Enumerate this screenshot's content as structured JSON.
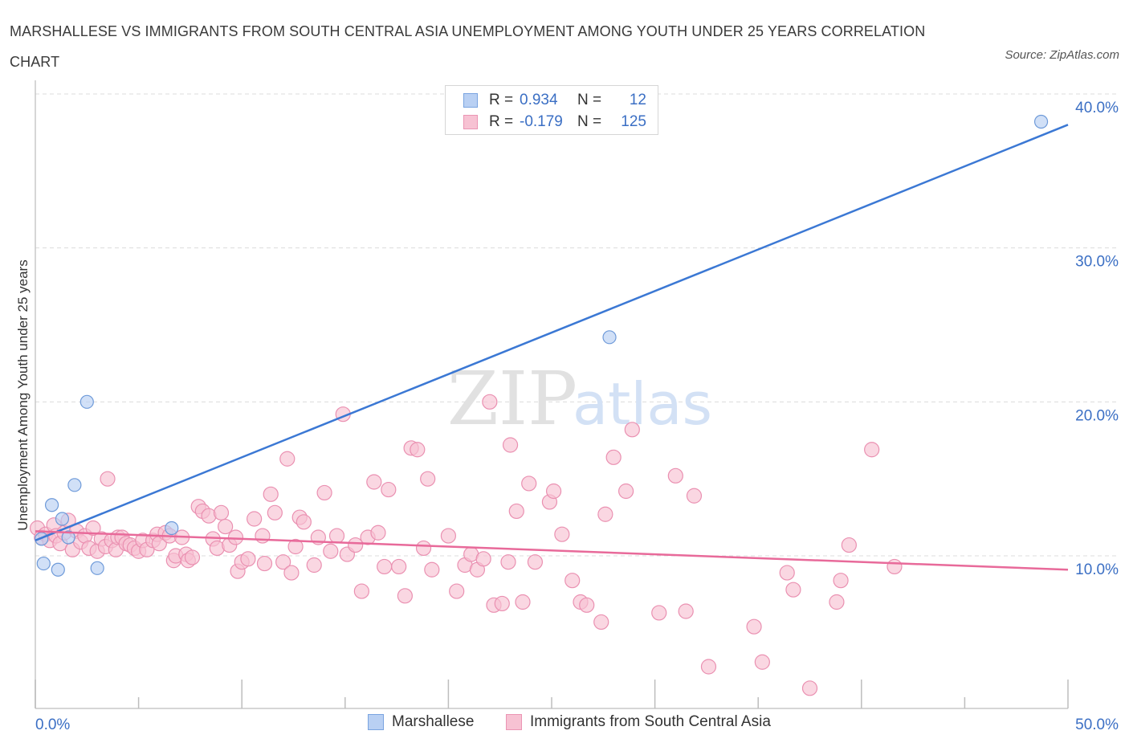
{
  "title": "MARSHALLESE VS IMMIGRANTS FROM SOUTH CENTRAL ASIA UNEMPLOYMENT AMONG YOUTH UNDER 25 YEARS CORRELATION CHART",
  "source": "Source: ZipAtlas.com",
  "watermark": {
    "zip": "ZIP",
    "atlas": "atlas"
  },
  "colors": {
    "blue": "#3b78d4",
    "blue_fill": "#b9d0f3",
    "pink": "#e86a9a",
    "pink_fill": "#f7c2d3",
    "axis_label": "#3b6fc4",
    "grid": "#dcdcdc"
  },
  "legend_top": {
    "rows": [
      {
        "r_label": "R =",
        "r_value": "0.934",
        "n_label": "N =",
        "n_value": "12"
      },
      {
        "r_label": "R =",
        "r_value": "-0.179",
        "n_label": "N =",
        "n_value": "125"
      }
    ]
  },
  "legend_bottom": {
    "items": [
      "Marshallese",
      "Immigrants from South Central Asia"
    ]
  },
  "chart_data": {
    "type": "scatter",
    "xlabel": "",
    "ylabel": "Unemployment Among Youth under 25 years",
    "xlim": [
      0,
      50
    ],
    "ylim": [
      0,
      40
    ],
    "x_tick_labels": [
      "0.0%",
      "50.0%"
    ],
    "y_ticks": [
      10,
      20,
      30,
      40
    ],
    "y_tick_labels": [
      "10.0%",
      "20.0%",
      "30.0%",
      "40.0%"
    ],
    "grid": true,
    "series": [
      {
        "name": "Marshallese",
        "R": 0.934,
        "N": 12,
        "trend": [
          [
            0,
            11.0
          ],
          [
            50,
            38.0
          ]
        ],
        "points": [
          [
            0.3,
            11.1
          ],
          [
            0.4,
            9.5
          ],
          [
            0.8,
            13.3
          ],
          [
            1.1,
            9.1
          ],
          [
            1.3,
            12.4
          ],
          [
            1.6,
            11.2
          ],
          [
            1.9,
            14.6
          ],
          [
            2.5,
            20.0
          ],
          [
            3.0,
            9.2
          ],
          [
            6.6,
            11.8
          ],
          [
            27.8,
            24.2
          ],
          [
            48.7,
            38.2
          ]
        ]
      },
      {
        "name": "Immigrants from South Central Asia",
        "R": -0.179,
        "N": 125,
        "trend": [
          [
            0,
            11.6
          ],
          [
            50,
            9.1
          ]
        ],
        "points": [
          [
            0.1,
            11.8
          ],
          [
            0.3,
            11.2
          ],
          [
            0.5,
            11.4
          ],
          [
            0.7,
            11.0
          ],
          [
            0.9,
            12.0
          ],
          [
            1.0,
            11.3
          ],
          [
            1.2,
            10.8
          ],
          [
            1.4,
            11.5
          ],
          [
            1.6,
            12.3
          ],
          [
            1.8,
            10.4
          ],
          [
            2.0,
            11.6
          ],
          [
            2.2,
            10.9
          ],
          [
            2.4,
            11.3
          ],
          [
            2.6,
            10.5
          ],
          [
            2.8,
            11.8
          ],
          [
            3.0,
            10.3
          ],
          [
            3.2,
            11.1
          ],
          [
            3.4,
            10.6
          ],
          [
            3.5,
            15.0
          ],
          [
            3.7,
            11.0
          ],
          [
            3.9,
            10.4
          ],
          [
            4.0,
            11.2
          ],
          [
            4.2,
            11.2
          ],
          [
            4.4,
            10.8
          ],
          [
            4.6,
            10.7
          ],
          [
            4.8,
            10.5
          ],
          [
            5.0,
            10.3
          ],
          [
            5.2,
            11.0
          ],
          [
            5.4,
            10.4
          ],
          [
            5.7,
            11.0
          ],
          [
            5.9,
            11.4
          ],
          [
            6.0,
            10.8
          ],
          [
            6.3,
            11.5
          ],
          [
            6.5,
            11.3
          ],
          [
            6.7,
            9.7
          ],
          [
            6.8,
            10.0
          ],
          [
            7.1,
            11.2
          ],
          [
            7.3,
            10.1
          ],
          [
            7.4,
            9.7
          ],
          [
            7.6,
            9.9
          ],
          [
            7.9,
            13.2
          ],
          [
            8.1,
            12.9
          ],
          [
            8.4,
            12.6
          ],
          [
            8.6,
            11.1
          ],
          [
            8.8,
            10.5
          ],
          [
            9.0,
            12.8
          ],
          [
            9.2,
            11.9
          ],
          [
            9.4,
            10.7
          ],
          [
            9.7,
            11.2
          ],
          [
            9.8,
            9.0
          ],
          [
            10.0,
            9.6
          ],
          [
            10.3,
            9.8
          ],
          [
            10.6,
            12.4
          ],
          [
            11.0,
            11.3
          ],
          [
            11.1,
            9.5
          ],
          [
            11.4,
            14.0
          ],
          [
            11.6,
            12.8
          ],
          [
            12.0,
            9.6
          ],
          [
            12.2,
            16.3
          ],
          [
            12.4,
            8.9
          ],
          [
            12.6,
            10.6
          ],
          [
            12.8,
            12.5
          ],
          [
            13.0,
            12.2
          ],
          [
            13.5,
            9.4
          ],
          [
            13.7,
            11.2
          ],
          [
            14.0,
            14.1
          ],
          [
            14.3,
            10.3
          ],
          [
            14.6,
            11.3
          ],
          [
            14.9,
            19.2
          ],
          [
            15.1,
            10.1
          ],
          [
            15.5,
            10.7
          ],
          [
            15.8,
            7.7
          ],
          [
            16.1,
            11.2
          ],
          [
            16.4,
            14.8
          ],
          [
            16.6,
            11.5
          ],
          [
            16.9,
            9.3
          ],
          [
            17.1,
            14.3
          ],
          [
            17.6,
            9.3
          ],
          [
            17.9,
            7.4
          ],
          [
            18.2,
            17.0
          ],
          [
            18.5,
            16.9
          ],
          [
            18.8,
            10.5
          ],
          [
            19.0,
            15.0
          ],
          [
            19.2,
            9.1
          ],
          [
            20.0,
            11.3
          ],
          [
            20.4,
            7.7
          ],
          [
            20.8,
            9.4
          ],
          [
            21.1,
            10.1
          ],
          [
            21.4,
            9.1
          ],
          [
            21.7,
            9.8
          ],
          [
            22.0,
            20.0
          ],
          [
            22.2,
            6.8
          ],
          [
            22.6,
            6.9
          ],
          [
            22.9,
            9.6
          ],
          [
            23.0,
            17.2
          ],
          [
            23.3,
            12.9
          ],
          [
            23.6,
            7.0
          ],
          [
            23.9,
            14.7
          ],
          [
            24.2,
            9.6
          ],
          [
            24.9,
            13.5
          ],
          [
            25.1,
            14.2
          ],
          [
            25.5,
            11.4
          ],
          [
            26.0,
            8.4
          ],
          [
            26.4,
            7.0
          ],
          [
            26.7,
            6.8
          ],
          [
            27.4,
            5.7
          ],
          [
            27.6,
            12.7
          ],
          [
            28.0,
            16.4
          ],
          [
            28.6,
            14.2
          ],
          [
            28.9,
            18.2
          ],
          [
            30.2,
            6.3
          ],
          [
            31.0,
            15.2
          ],
          [
            31.5,
            6.4
          ],
          [
            31.9,
            13.9
          ],
          [
            32.6,
            2.8
          ],
          [
            34.8,
            5.4
          ],
          [
            35.2,
            3.1
          ],
          [
            36.4,
            8.9
          ],
          [
            36.7,
            7.8
          ],
          [
            37.5,
            1.4
          ],
          [
            38.8,
            7.0
          ],
          [
            39.0,
            8.4
          ],
          [
            39.4,
            10.7
          ],
          [
            40.5,
            16.9
          ],
          [
            41.6,
            9.3
          ]
        ]
      }
    ]
  }
}
